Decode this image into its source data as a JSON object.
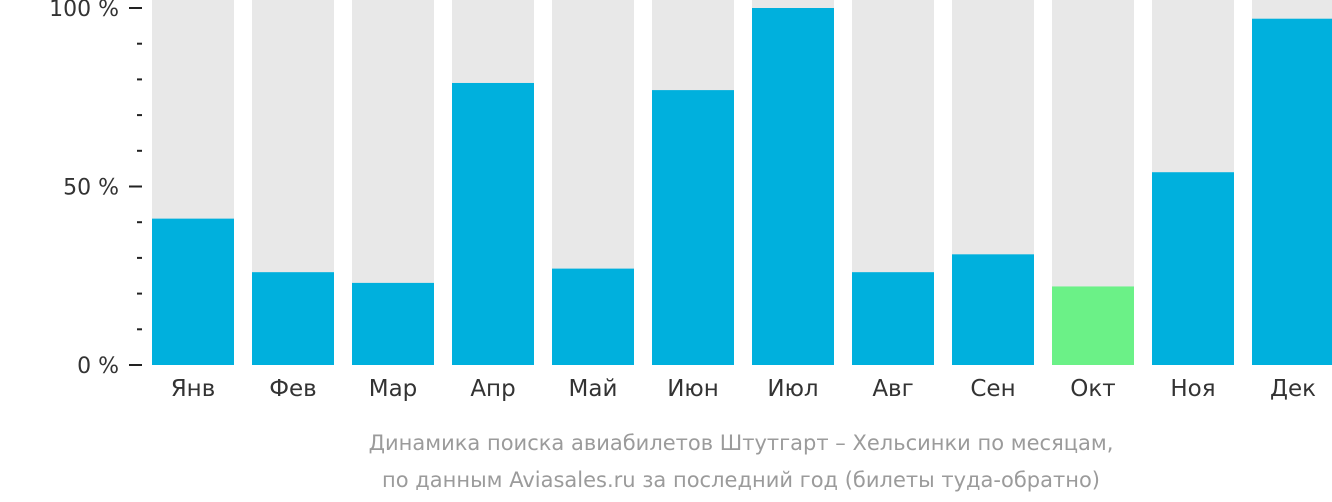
{
  "chart_data": {
    "type": "bar",
    "categories": [
      "Янв",
      "Фев",
      "Мар",
      "Апр",
      "Май",
      "Июн",
      "Июл",
      "Авг",
      "Сен",
      "Окт",
      "Ноя",
      "Дек"
    ],
    "values": [
      41,
      26,
      23,
      79,
      27,
      77,
      100,
      26,
      31,
      22,
      54,
      97
    ],
    "highlight_index": 9,
    "ylim": [
      0,
      100
    ],
    "y_ticks": [
      {
        "value": 0,
        "label": "0 %"
      },
      {
        "value": 50,
        "label": "50 %"
      },
      {
        "value": 100,
        "label": "100 %"
      }
    ],
    "minor_tick_step": 10,
    "colors": {
      "bar": "#00b0dd",
      "highlight": "#6bf187",
      "track": "#e8e8e8",
      "axis": "#222222",
      "tick_label": "#333333",
      "category_label": "#333333"
    }
  },
  "caption": {
    "line1": "Динамика поиска авиабилетов Штутгарт – Хельсинки по месяцам,",
    "line2": "по данным Aviasales.ru за последний год (билеты туда-обратно)"
  }
}
